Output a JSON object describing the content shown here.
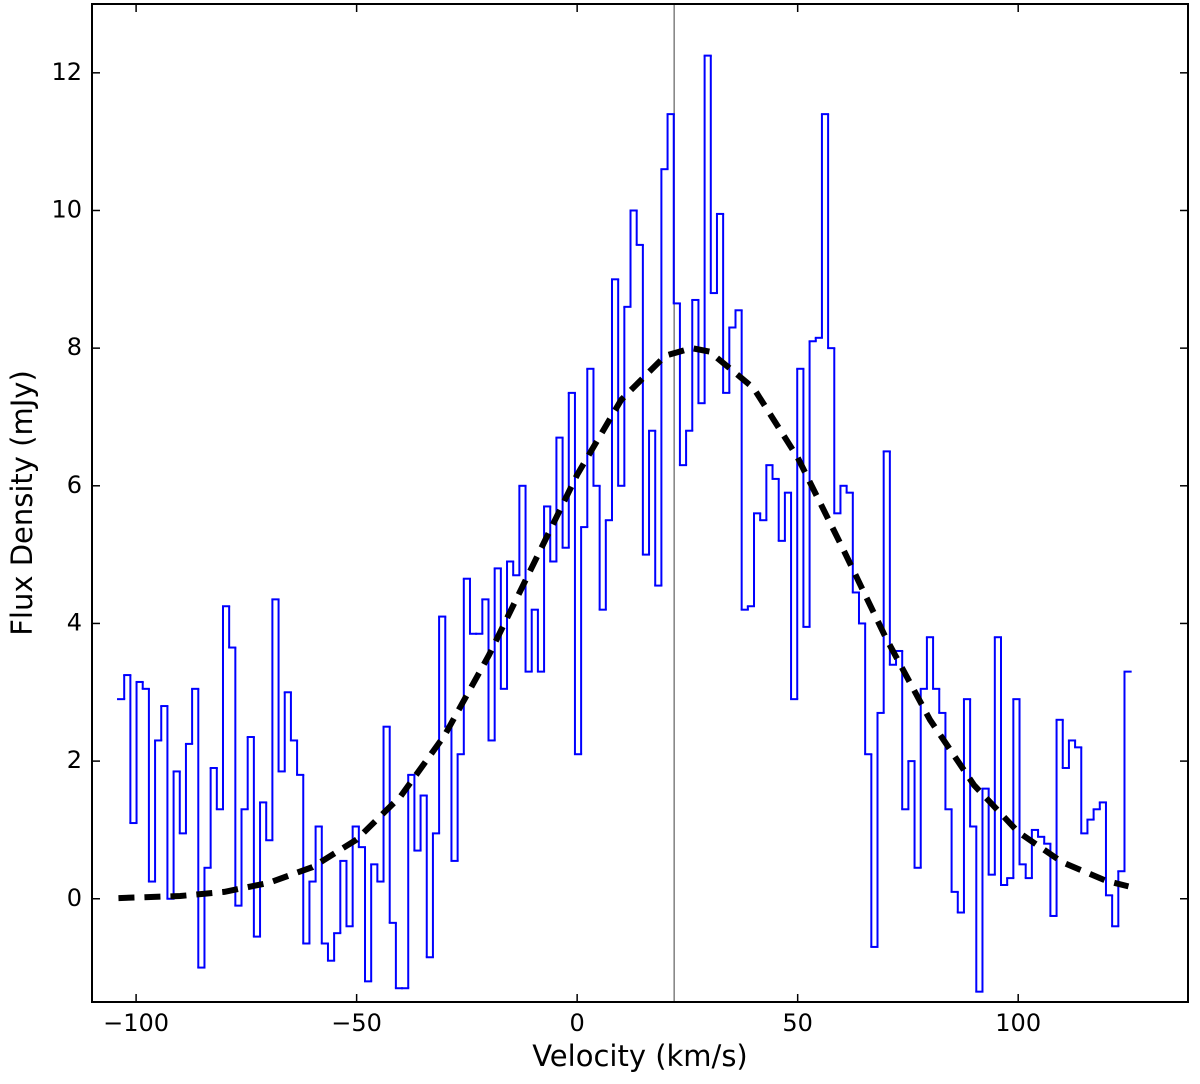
{
  "chart_data": {
    "type": "line",
    "xlabel": "Velocity (km/s)",
    "ylabel": "Flux Density (mJy)",
    "xlim": [
      -110,
      138.5
    ],
    "ylim": [
      -1.5,
      13
    ],
    "xticks": [
      {
        "value": -100,
        "label": "−100"
      },
      {
        "value": -50,
        "label": "−50"
      },
      0,
      50,
      100
    ],
    "yticks": [
      0,
      2,
      4,
      6,
      8,
      10,
      12
    ],
    "vline": {
      "x": 22,
      "color": "#808080"
    },
    "x": [
      -103.4,
      -102.0,
      -100.6,
      -99.2,
      -97.8,
      -96.4,
      -95.0,
      -93.6,
      -92.2,
      -90.8,
      -89.4,
      -88.0,
      -86.6,
      -85.2,
      -83.8,
      -82.4,
      -81.0,
      -79.6,
      -78.2,
      -76.8,
      -75.4,
      -74.0,
      -72.6,
      -71.2,
      -69.8,
      -68.4,
      -67.0,
      -65.6,
      -64.2,
      -62.8,
      -61.4,
      -60.0,
      -58.6,
      -57.2,
      -55.8,
      -54.4,
      -53.0,
      -51.6,
      -50.2,
      -48.8,
      -47.4,
      -46.0,
      -44.6,
      -43.2,
      -41.8,
      -40.4,
      -39.0,
      -37.6,
      -36.2,
      -34.8,
      -33.4,
      -32.0,
      -30.6,
      -29.2,
      -27.8,
      -26.4,
      -25.0,
      -23.6,
      -22.2,
      -20.8,
      -19.4,
      -18.0,
      -16.6,
      -15.2,
      -13.8,
      -12.4,
      -11.0,
      -9.6,
      -8.2,
      -6.8,
      -5.4,
      -4.0,
      -2.6,
      -1.2,
      0.2,
      1.6,
      3.0,
      4.4,
      5.8,
      7.2,
      8.6,
      10.0,
      11.4,
      12.8,
      14.2,
      15.6,
      17.0,
      18.4,
      19.8,
      21.2,
      22.6,
      24.0,
      25.4,
      26.8,
      28.2,
      29.6,
      31.0,
      32.4,
      33.8,
      35.2,
      36.6,
      38.0,
      39.4,
      40.8,
      42.2,
      43.6,
      45.0,
      46.4,
      47.8,
      49.2,
      50.6,
      52.0,
      53.4,
      54.8,
      56.2,
      57.6,
      59.0,
      60.4,
      61.8,
      63.2,
      64.6,
      66.0,
      67.4,
      68.8,
      70.2,
      71.6,
      73.0,
      74.4,
      75.8,
      77.2,
      78.6,
      80.0,
      81.4,
      82.8,
      84.2,
      85.6,
      87.0,
      88.4,
      89.8,
      91.2,
      92.6,
      94.0,
      95.4,
      96.8,
      98.2,
      99.6,
      101.0,
      102.4,
      103.8,
      105.2,
      106.6,
      108.0,
      109.4,
      110.8,
      112.2,
      113.6,
      115.0,
      116.4,
      117.8,
      119.2,
      120.6,
      122.0,
      123.4,
      124.8
    ],
    "series": [
      {
        "color": "#0000ff",
        "style": "steps",
        "values": [
          2.9,
          3.25,
          1.1,
          3.15,
          3.05,
          0.25,
          2.3,
          2.8,
          0.0,
          1.85,
          0.95,
          2.25,
          3.05,
          -1.0,
          0.45,
          1.9,
          1.3,
          4.25,
          3.65,
          -0.1,
          1.3,
          2.35,
          -0.55,
          1.4,
          0.85,
          4.35,
          1.85,
          3.0,
          2.3,
          1.8,
          -0.65,
          0.25,
          1.05,
          -0.65,
          -0.9,
          -0.5,
          0.55,
          -0.4,
          1.05,
          0.75,
          -1.2,
          0.5,
          0.25,
          2.5,
          -0.35,
          -1.3,
          -1.3,
          1.8,
          0.7,
          1.5,
          -0.85,
          0.95,
          4.1,
          2.5,
          0.55,
          2.1,
          4.65,
          3.85,
          3.85,
          4.35,
          2.3,
          4.8,
          3.05,
          4.9,
          4.7,
          6.0,
          3.3,
          4.2,
          3.3,
          5.7,
          4.9,
          6.7,
          5.1,
          7.35,
          2.1,
          5.4,
          7.7,
          6.0,
          4.2,
          5.5,
          9.0,
          6.0,
          8.6,
          10.0,
          9.5,
          5.0,
          6.8,
          4.55,
          10.6,
          11.4,
          8.65,
          6.3,
          6.8,
          8.7,
          7.2,
          12.25,
          8.8,
          9.95,
          7.35,
          8.3,
          8.55,
          4.2,
          4.25,
          5.6,
          5.5,
          6.3,
          6.1,
          5.2,
          5.9,
          2.9,
          7.7,
          3.95,
          8.1,
          8.15,
          11.4,
          8.0,
          5.6,
          6.0,
          5.9,
          4.45,
          4.0,
          2.1,
          -0.7,
          2.7,
          6.5,
          3.4,
          3.6,
          1.3,
          2.0,
          0.45,
          3.05,
          3.8,
          3.05,
          2.7,
          1.3,
          0.1,
          -0.2,
          2.9,
          1.05,
          -1.35,
          1.6,
          0.35,
          3.8,
          0.2,
          0.3,
          2.9,
          0.5,
          0.3,
          1.0,
          0.9,
          0.8,
          -0.25,
          2.6,
          1.9,
          2.3,
          2.2,
          0.95,
          1.15,
          1.3,
          1.4,
          0.05,
          -0.4,
          0.4,
          3.3
        ]
      },
      {
        "color": "#000000",
        "style": "dashed",
        "x": [
          -104,
          -90,
          -80,
          -70,
          -60,
          -50,
          -40,
          -30,
          -20,
          -10,
          0,
          10,
          20,
          26,
          30,
          40,
          50,
          60,
          70,
          80,
          90,
          100,
          110,
          120,
          125
        ],
        "values": [
          0.01,
          0.04,
          0.1,
          0.23,
          0.46,
          0.86,
          1.49,
          2.38,
          3.54,
          4.85,
          6.16,
          7.25,
          7.89,
          8.0,
          7.95,
          7.42,
          6.41,
          5.12,
          3.79,
          2.6,
          1.65,
          0.97,
          0.53,
          0.26,
          0.18
        ]
      }
    ]
  }
}
